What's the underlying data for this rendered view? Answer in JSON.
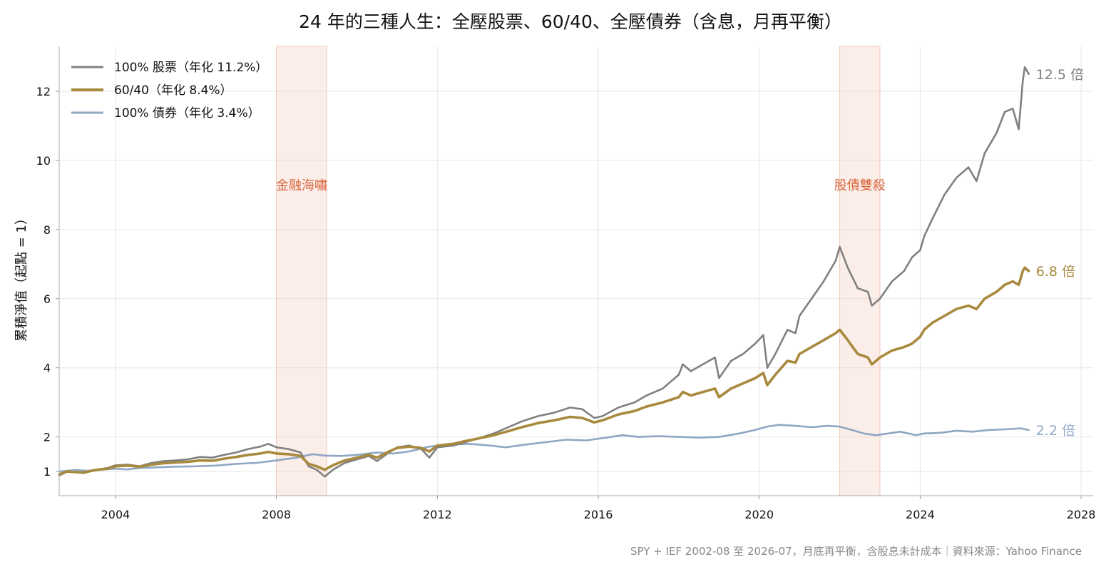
{
  "chart_data": {
    "type": "line",
    "title": "24 年的三種人生：全壓股票、60/40、全壓債券（含息，月再平衡）",
    "ylabel": "累積淨值（起點 = 1）",
    "xlabel": "",
    "xlim": [
      2002.6,
      2028.3
    ],
    "ylim": [
      0.3,
      13.3
    ],
    "x_ticks": [
      2004,
      2008,
      2012,
      2016,
      2020,
      2024,
      2028
    ],
    "x_tick_labels": [
      "2004",
      "2008",
      "2012",
      "2016",
      "2020",
      "2024",
      "2028"
    ],
    "y_ticks": [
      1,
      2,
      4,
      6,
      8,
      10,
      12
    ],
    "y_tick_labels": [
      "1",
      "2",
      "4",
      "6",
      "8",
      "10",
      "12"
    ],
    "grid": true,
    "legend_position": "top-left",
    "shaded_regions": [
      {
        "label": "金融海嘯",
        "start": 2008.0,
        "end": 2009.25
      },
      {
        "label": "股債雙殺",
        "start": 2022.0,
        "end": 2023.0
      }
    ],
    "series": [
      {
        "name": "100% 股票（年化 11.2%）",
        "color": "#808080",
        "end_label": "12.5 倍",
        "points": [
          [
            2002.6,
            0.88
          ],
          [
            2002.8,
            1.0
          ],
          [
            2003.0,
            0.98
          ],
          [
            2003.2,
            0.95
          ],
          [
            2003.5,
            1.05
          ],
          [
            2003.8,
            1.1
          ],
          [
            2004.0,
            1.18
          ],
          [
            2004.3,
            1.2
          ],
          [
            2004.6,
            1.15
          ],
          [
            2004.9,
            1.25
          ],
          [
            2005.2,
            1.3
          ],
          [
            2005.5,
            1.32
          ],
          [
            2005.8,
            1.35
          ],
          [
            2006.1,
            1.42
          ],
          [
            2006.4,
            1.4
          ],
          [
            2006.7,
            1.48
          ],
          [
            2007.0,
            1.55
          ],
          [
            2007.3,
            1.65
          ],
          [
            2007.6,
            1.72
          ],
          [
            2007.8,
            1.8
          ],
          [
            2008.0,
            1.7
          ],
          [
            2008.3,
            1.65
          ],
          [
            2008.6,
            1.55
          ],
          [
            2008.8,
            1.15
          ],
          [
            2009.0,
            1.05
          ],
          [
            2009.2,
            0.85
          ],
          [
            2009.4,
            1.05
          ],
          [
            2009.7,
            1.25
          ],
          [
            2010.0,
            1.35
          ],
          [
            2010.3,
            1.45
          ],
          [
            2010.5,
            1.3
          ],
          [
            2010.8,
            1.55
          ],
          [
            2011.0,
            1.7
          ],
          [
            2011.3,
            1.75
          ],
          [
            2011.6,
            1.65
          ],
          [
            2011.8,
            1.4
          ],
          [
            2012.0,
            1.7
          ],
          [
            2012.4,
            1.75
          ],
          [
            2012.7,
            1.85
          ],
          [
            2013.0,
            1.95
          ],
          [
            2013.4,
            2.1
          ],
          [
            2013.8,
            2.3
          ],
          [
            2014.1,
            2.45
          ],
          [
            2014.5,
            2.6
          ],
          [
            2014.9,
            2.7
          ],
          [
            2015.3,
            2.85
          ],
          [
            2015.6,
            2.8
          ],
          [
            2015.9,
            2.55
          ],
          [
            2016.1,
            2.6
          ],
          [
            2016.5,
            2.85
          ],
          [
            2016.9,
            3.0
          ],
          [
            2017.2,
            3.2
          ],
          [
            2017.6,
            3.4
          ],
          [
            2018.0,
            3.8
          ],
          [
            2018.1,
            4.1
          ],
          [
            2018.3,
            3.9
          ],
          [
            2018.6,
            4.1
          ],
          [
            2018.9,
            4.3
          ],
          [
            2019.0,
            3.7
          ],
          [
            2019.3,
            4.2
          ],
          [
            2019.6,
            4.4
          ],
          [
            2019.9,
            4.7
          ],
          [
            2020.1,
            4.95
          ],
          [
            2020.2,
            4.0
          ],
          [
            2020.4,
            4.4
          ],
          [
            2020.7,
            5.1
          ],
          [
            2020.9,
            5.0
          ],
          [
            2021.0,
            5.5
          ],
          [
            2021.3,
            6.0
          ],
          [
            2021.6,
            6.5
          ],
          [
            2021.9,
            7.1
          ],
          [
            2022.0,
            7.5
          ],
          [
            2022.2,
            6.9
          ],
          [
            2022.45,
            6.3
          ],
          [
            2022.7,
            6.2
          ],
          [
            2022.8,
            5.8
          ],
          [
            2023.0,
            6.0
          ],
          [
            2023.3,
            6.5
          ],
          [
            2023.6,
            6.8
          ],
          [
            2023.8,
            7.2
          ],
          [
            2024.0,
            7.4
          ],
          [
            2024.1,
            7.8
          ],
          [
            2024.3,
            8.3
          ],
          [
            2024.6,
            9.0
          ],
          [
            2024.9,
            9.5
          ],
          [
            2025.2,
            9.8
          ],
          [
            2025.4,
            9.4
          ],
          [
            2025.6,
            10.2
          ],
          [
            2025.9,
            10.8
          ],
          [
            2026.1,
            11.4
          ],
          [
            2026.3,
            11.5
          ],
          [
            2026.45,
            10.9
          ],
          [
            2026.55,
            12.3
          ],
          [
            2026.6,
            12.7
          ],
          [
            2026.7,
            12.5
          ]
        ]
      },
      {
        "name": "60/40（年化 8.4%）",
        "color": "#a8893d",
        "end_label": "6.8 倍",
        "points": [
          [
            2002.6,
            0.92
          ],
          [
            2002.8,
            1.0
          ],
          [
            2003.0,
            0.98
          ],
          [
            2003.2,
            0.97
          ],
          [
            2003.5,
            1.04
          ],
          [
            2003.8,
            1.08
          ],
          [
            2004.0,
            1.15
          ],
          [
            2004.3,
            1.17
          ],
          [
            2004.6,
            1.14
          ],
          [
            2004.9,
            1.2
          ],
          [
            2005.2,
            1.24
          ],
          [
            2005.5,
            1.26
          ],
          [
            2005.8,
            1.28
          ],
          [
            2006.1,
            1.32
          ],
          [
            2006.4,
            1.31
          ],
          [
            2006.7,
            1.37
          ],
          [
            2007.0,
            1.42
          ],
          [
            2007.3,
            1.48
          ],
          [
            2007.6,
            1.52
          ],
          [
            2007.8,
            1.57
          ],
          [
            2008.0,
            1.52
          ],
          [
            2008.3,
            1.5
          ],
          [
            2008.6,
            1.45
          ],
          [
            2008.8,
            1.22
          ],
          [
            2009.0,
            1.15
          ],
          [
            2009.2,
            1.05
          ],
          [
            2009.4,
            1.18
          ],
          [
            2009.7,
            1.32
          ],
          [
            2010.0,
            1.4
          ],
          [
            2010.3,
            1.48
          ],
          [
            2010.5,
            1.4
          ],
          [
            2010.8,
            1.58
          ],
          [
            2011.0,
            1.68
          ],
          [
            2011.3,
            1.72
          ],
          [
            2011.6,
            1.68
          ],
          [
            2011.8,
            1.58
          ],
          [
            2012.0,
            1.75
          ],
          [
            2012.4,
            1.8
          ],
          [
            2012.7,
            1.88
          ],
          [
            2013.0,
            1.95
          ],
          [
            2013.4,
            2.05
          ],
          [
            2013.8,
            2.18
          ],
          [
            2014.1,
            2.28
          ],
          [
            2014.5,
            2.4
          ],
          [
            2014.9,
            2.48
          ],
          [
            2015.3,
            2.58
          ],
          [
            2015.6,
            2.55
          ],
          [
            2015.9,
            2.42
          ],
          [
            2016.1,
            2.48
          ],
          [
            2016.5,
            2.65
          ],
          [
            2016.9,
            2.75
          ],
          [
            2017.2,
            2.88
          ],
          [
            2017.6,
            3.0
          ],
          [
            2018.0,
            3.15
          ],
          [
            2018.1,
            3.3
          ],
          [
            2018.3,
            3.2
          ],
          [
            2018.6,
            3.3
          ],
          [
            2018.9,
            3.4
          ],
          [
            2019.0,
            3.15
          ],
          [
            2019.3,
            3.4
          ],
          [
            2019.6,
            3.55
          ],
          [
            2019.9,
            3.7
          ],
          [
            2020.1,
            3.85
          ],
          [
            2020.2,
            3.5
          ],
          [
            2020.4,
            3.8
          ],
          [
            2020.7,
            4.2
          ],
          [
            2020.9,
            4.15
          ],
          [
            2021.0,
            4.4
          ],
          [
            2021.3,
            4.6
          ],
          [
            2021.6,
            4.8
          ],
          [
            2021.9,
            5.0
          ],
          [
            2022.0,
            5.1
          ],
          [
            2022.2,
            4.8
          ],
          [
            2022.45,
            4.4
          ],
          [
            2022.7,
            4.3
          ],
          [
            2022.8,
            4.1
          ],
          [
            2023.0,
            4.3
          ],
          [
            2023.3,
            4.5
          ],
          [
            2023.6,
            4.6
          ],
          [
            2023.8,
            4.7
          ],
          [
            2024.0,
            4.9
          ],
          [
            2024.1,
            5.1
          ],
          [
            2024.3,
            5.3
          ],
          [
            2024.6,
            5.5
          ],
          [
            2024.9,
            5.7
          ],
          [
            2025.2,
            5.8
          ],
          [
            2025.4,
            5.7
          ],
          [
            2025.6,
            6.0
          ],
          [
            2025.9,
            6.2
          ],
          [
            2026.1,
            6.4
          ],
          [
            2026.3,
            6.5
          ],
          [
            2026.45,
            6.4
          ],
          [
            2026.55,
            6.8
          ],
          [
            2026.6,
            6.9
          ],
          [
            2026.7,
            6.8
          ]
        ]
      },
      {
        "name": "100% 債券（年化 3.4%）",
        "color": "#8fa7c4",
        "end_label": "2.2 倍",
        "points": [
          [
            2002.6,
            1.0
          ],
          [
            2002.8,
            1.02
          ],
          [
            2003.0,
            1.04
          ],
          [
            2003.3,
            1.02
          ],
          [
            2003.6,
            1.05
          ],
          [
            2004.0,
            1.08
          ],
          [
            2004.3,
            1.06
          ],
          [
            2004.6,
            1.1
          ],
          [
            2005.0,
            1.12
          ],
          [
            2005.5,
            1.14
          ],
          [
            2006.0,
            1.15
          ],
          [
            2006.5,
            1.17
          ],
          [
            2007.0,
            1.22
          ],
          [
            2007.5,
            1.25
          ],
          [
            2008.0,
            1.32
          ],
          [
            2008.5,
            1.4
          ],
          [
            2008.9,
            1.5
          ],
          [
            2009.2,
            1.46
          ],
          [
            2009.6,
            1.45
          ],
          [
            2010.0,
            1.48
          ],
          [
            2010.5,
            1.55
          ],
          [
            2010.9,
            1.52
          ],
          [
            2011.3,
            1.58
          ],
          [
            2011.8,
            1.72
          ],
          [
            2012.3,
            1.78
          ],
          [
            2012.8,
            1.8
          ],
          [
            2013.3,
            1.75
          ],
          [
            2013.7,
            1.7
          ],
          [
            2014.2,
            1.78
          ],
          [
            2014.7,
            1.85
          ],
          [
            2015.2,
            1.92
          ],
          [
            2015.7,
            1.9
          ],
          [
            2016.2,
            1.98
          ],
          [
            2016.6,
            2.05
          ],
          [
            2017.0,
            2.0
          ],
          [
            2017.5,
            2.02
          ],
          [
            2018.0,
            2.0
          ],
          [
            2018.5,
            1.98
          ],
          [
            2019.0,
            2.0
          ],
          [
            2019.5,
            2.1
          ],
          [
            2019.9,
            2.2
          ],
          [
            2020.2,
            2.3
          ],
          [
            2020.5,
            2.35
          ],
          [
            2020.9,
            2.32
          ],
          [
            2021.3,
            2.28
          ],
          [
            2021.7,
            2.32
          ],
          [
            2022.0,
            2.3
          ],
          [
            2022.3,
            2.2
          ],
          [
            2022.6,
            2.1
          ],
          [
            2022.9,
            2.05
          ],
          [
            2023.2,
            2.1
          ],
          [
            2023.5,
            2.15
          ],
          [
            2023.9,
            2.05
          ],
          [
            2024.1,
            2.1
          ],
          [
            2024.5,
            2.12
          ],
          [
            2024.9,
            2.18
          ],
          [
            2025.3,
            2.15
          ],
          [
            2025.7,
            2.2
          ],
          [
            2026.1,
            2.22
          ],
          [
            2026.5,
            2.25
          ],
          [
            2026.7,
            2.2
          ]
        ]
      }
    ],
    "footer": "SPY + IEF 2002-08 至 2026-07，月底再平衡，含股息未計成本｜資料來源：Yahoo Finance"
  }
}
